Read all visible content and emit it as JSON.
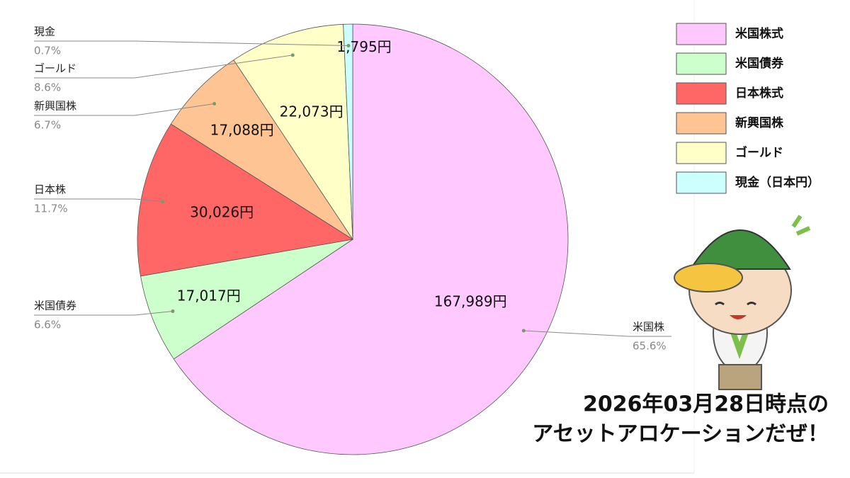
{
  "chart_data": {
    "type": "pie",
    "categories": [
      "米国株",
      "米国債券",
      "日本株",
      "新興国株",
      "ゴールド",
      "現金"
    ],
    "values": [
      167989,
      17017,
      30026,
      17088,
      22073,
      1795
    ],
    "value_labels": [
      "167,989円",
      "17,017円",
      "30,026円",
      "17,088円",
      "22,073円",
      "1,795円"
    ],
    "percents": [
      65.6,
      6.6,
      11.7,
      6.7,
      8.6,
      0.7
    ],
    "percent_labels": [
      "65.6%",
      "6.6%",
      "11.7%",
      "6.7%",
      "8.6%",
      "0.7%"
    ],
    "colors": [
      "#ffc8ff",
      "#ccffcc",
      "#ff6666",
      "#ffc493",
      "#ffffc8",
      "#ccffff"
    ],
    "legend": [
      "米国株式",
      "米国債券",
      "日本株式",
      "新興国株",
      "ゴールド",
      "現金（日本円）"
    ],
    "annotation": [
      "2026年03月28日時点の",
      "アセットアロケーションだぜ！"
    ]
  }
}
